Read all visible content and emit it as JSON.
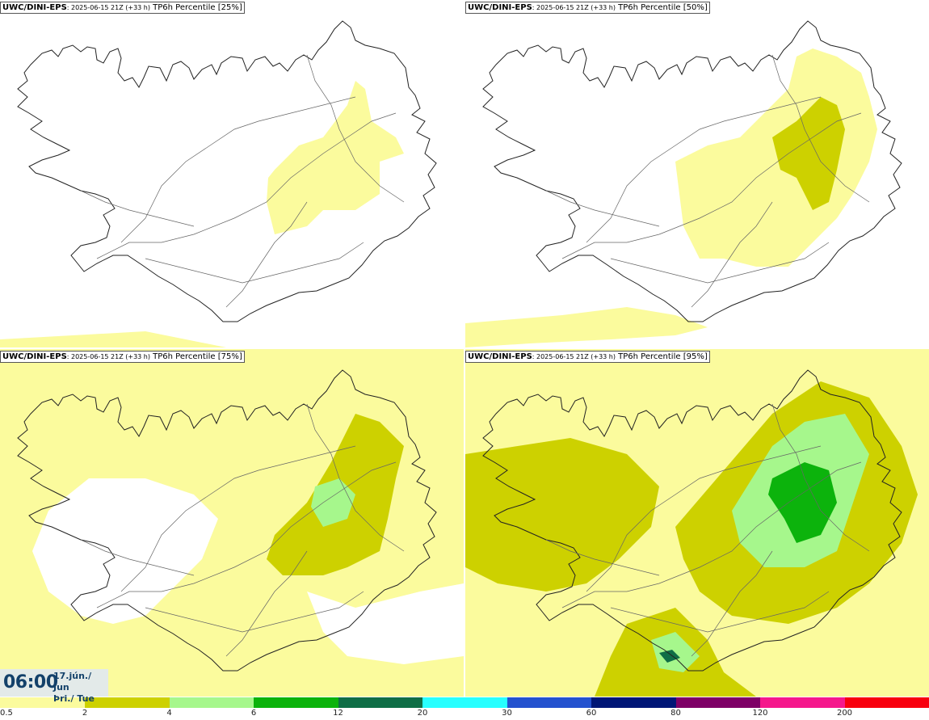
{
  "panels": [
    {
      "model": "UWC/DINI-EPS",
      "run": ": 2025-06-15 21Z (+33 h)",
      "product": " TP6h Percentile [25%]"
    },
    {
      "model": "UWC/DINI-EPS",
      "run": ": 2025-06-15 21Z (+33 h)",
      "product": " TP6h Percentile [50%]"
    },
    {
      "model": "UWC/DINI-EPS",
      "run": ": 2025-06-15 21Z (+33 h)",
      "product": " TP6h Percentile [75%]"
    },
    {
      "model": "UWC/DINI-EPS",
      "run": ": 2025-06-15 21Z (+33 h)",
      "product": " TP6h Percentile [95%]"
    }
  ],
  "valid_time": {
    "time": "06:00",
    "date_line": "17.jún./ Jun",
    "day_line": "Þri./ Tue"
  },
  "legend": {
    "labels": [
      "0.5",
      "2",
      "4",
      "6",
      "12",
      "20",
      "30",
      "60",
      "80",
      "120",
      "200"
    ],
    "colors": [
      "#fbfb9d",
      "#cdd100",
      "#a6f78c",
      "#0cb30c",
      "#0f6e46",
      "#27ffff",
      "#2452cf",
      "#001676",
      "#7e0066",
      "#f5188c",
      "#f8000e"
    ]
  },
  "shading_colors": {
    "light_yellow": "#fbfb9d",
    "olive": "#cdd100",
    "light_green": "#a6f78c",
    "green": "#0cb30c",
    "dark_green": "#0f6e46"
  }
}
